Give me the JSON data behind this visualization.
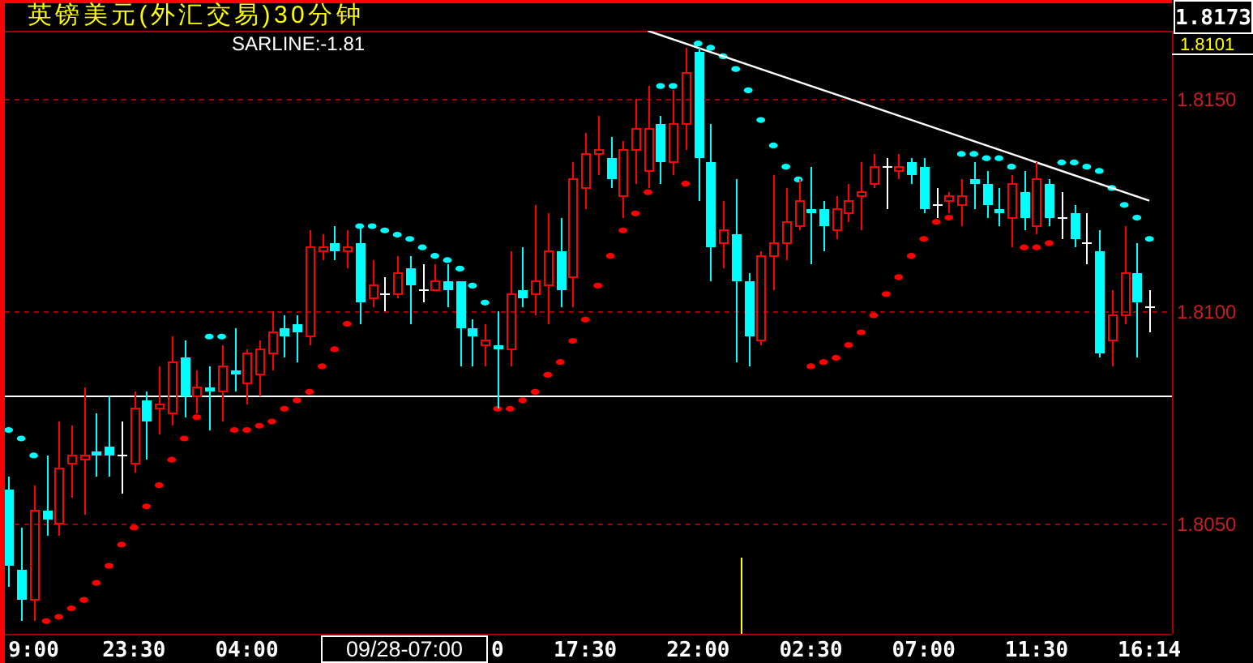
{
  "chart_data": {
    "type": "candlestick",
    "title": "英镑美元(外汇交易)30分钟",
    "annotations": [
      "SARLINE:-1.81",
      "1.8173",
      "1.8101",
      "09/28-07:00"
    ],
    "categories": [
      null,
      null,
      "9:00",
      null,
      null,
      null,
      null,
      null,
      null,
      null,
      "23:30",
      null,
      null,
      null,
      null,
      null,
      null,
      null,
      null,
      "04:00",
      null,
      null,
      null,
      null,
      null,
      null,
      null,
      null,
      null,
      null,
      null,
      null,
      null,
      null,
      null,
      null,
      null,
      null,
      null,
      "0",
      null,
      null,
      null,
      null,
      null,
      null,
      "17:30",
      null,
      null,
      null,
      null,
      null,
      null,
      null,
      null,
      "22:00",
      null,
      null,
      null,
      null,
      null,
      null,
      null,
      null,
      "02:30",
      null,
      null,
      null,
      null,
      null,
      null,
      null,
      null,
      "07:00",
      null,
      null,
      null,
      null,
      null,
      null,
      null,
      null,
      "11:30",
      null,
      null,
      null,
      null,
      null,
      null,
      null,
      null,
      "16:14"
    ],
    "ylim": [
      1.8024,
      1.8166
    ],
    "yticks": [
      {
        "value": 1.805,
        "label": "1.8050"
      },
      {
        "value": 1.81,
        "label": "1.8100"
      },
      {
        "value": 1.815,
        "label": "1.8150"
      }
    ],
    "grid": "y",
    "ohlc": [
      [
        1.8058,
        1.8061,
        1.8035,
        1.804
      ],
      [
        1.8039,
        1.8049,
        1.8027,
        1.8032
      ],
      [
        1.8032,
        1.8059,
        1.8027,
        1.8053
      ],
      [
        1.8053,
        1.8066,
        1.8047,
        1.8051
      ],
      [
        1.805,
        1.8074,
        1.8047,
        1.8063
      ],
      [
        1.8064,
        1.8073,
        1.8056,
        1.8066
      ],
      [
        1.8065,
        1.8082,
        1.8052,
        1.8066
      ],
      [
        1.8067,
        1.8076,
        1.8061,
        1.8066
      ],
      [
        1.8068,
        1.808,
        1.8061,
        1.8066
      ],
      [
        1.8066,
        1.8074,
        1.8057,
        1.8066
      ],
      [
        1.8064,
        1.8081,
        1.8062,
        1.8077
      ],
      [
        1.8079,
        1.8081,
        1.8065,
        1.8074
      ],
      [
        1.8077,
        1.8087,
        1.8071,
        1.8078
      ],
      [
        1.8076,
        1.8094,
        1.8073,
        1.8088
      ],
      [
        1.8089,
        1.8093,
        1.8075,
        1.808
      ],
      [
        1.808,
        1.8086,
        1.8076,
        1.8082
      ],
      [
        1.8082,
        1.8087,
        1.8072,
        1.8081
      ],
      [
        1.8081,
        1.8092,
        1.8074,
        1.8087
      ],
      [
        1.8086,
        1.8096,
        1.8081,
        1.8085
      ],
      [
        1.8083,
        1.8091,
        1.8078,
        1.809
      ],
      [
        1.8085,
        1.8093,
        1.808,
        1.8091
      ],
      [
        1.809,
        1.81,
        1.8086,
        1.8095
      ],
      [
        1.8096,
        1.8099,
        1.8089,
        1.8094
      ],
      [
        1.8097,
        1.8099,
        1.8088,
        1.8095
      ],
      [
        1.8094,
        1.8119,
        1.8092,
        1.8115
      ],
      [
        1.8114,
        1.8118,
        1.8112,
        1.8115
      ],
      [
        1.8116,
        1.812,
        1.8112,
        1.8114
      ],
      [
        1.8114,
        1.8119,
        1.811,
        1.8115
      ],
      [
        1.8116,
        1.812,
        1.8097,
        1.8102
      ],
      [
        1.8103,
        1.8112,
        1.8101,
        1.8106
      ],
      [
        1.8104,
        1.8108,
        1.81,
        1.8104
      ],
      [
        1.8104,
        1.8113,
        1.8103,
        1.8109
      ],
      [
        1.811,
        1.8113,
        1.8097,
        1.8106
      ],
      [
        1.8105,
        1.8111,
        1.8102,
        1.8105
      ],
      [
        1.8105,
        1.8111,
        1.8105,
        1.8107
      ],
      [
        1.8107,
        1.8111,
        1.8101,
        1.8105
      ],
      [
        1.8107,
        1.8107,
        1.8087,
        1.8096
      ],
      [
        1.8096,
        1.8098,
        1.8087,
        1.8094
      ],
      [
        1.8092,
        1.8097,
        1.8087,
        1.8093
      ],
      [
        1.8092,
        1.81,
        1.8077,
        1.8091
      ],
      [
        1.8091,
        1.8114,
        1.8087,
        1.8104
      ],
      [
        1.8105,
        1.8115,
        1.8101,
        1.8103
      ],
      [
        1.8104,
        1.8125,
        1.8099,
        1.8107
      ],
      [
        1.8106,
        1.8123,
        1.8097,
        1.8114
      ],
      [
        1.8114,
        1.8122,
        1.8101,
        1.8105
      ],
      [
        1.8108,
        1.8135,
        1.8101,
        1.8131
      ],
      [
        1.8129,
        1.8142,
        1.8124,
        1.8137
      ],
      [
        1.8137,
        1.8146,
        1.8132,
        1.8138
      ],
      [
        1.8136,
        1.8141,
        1.8129,
        1.8131
      ],
      [
        1.8127,
        1.814,
        1.8122,
        1.8138
      ],
      [
        1.8138,
        1.815,
        1.813,
        1.8143
      ],
      [
        1.8133,
        1.8153,
        1.8129,
        1.8143
      ],
      [
        1.8144,
        1.8146,
        1.813,
        1.8135
      ],
      [
        1.8135,
        1.8152,
        1.8132,
        1.8144
      ],
      [
        1.8144,
        1.8162,
        1.8138,
        1.8156
      ],
      [
        1.8161,
        1.8162,
        1.8126,
        1.8136
      ],
      [
        1.8135,
        1.8144,
        1.8107,
        1.8115
      ],
      [
        1.8116,
        1.8126,
        1.811,
        1.8119
      ],
      [
        1.8118,
        1.8131,
        1.8088,
        1.8107
      ],
      [
        1.8107,
        1.8109,
        1.8087,
        1.8094
      ],
      [
        1.8093,
        1.8114,
        1.8092,
        1.8113
      ],
      [
        1.8113,
        1.8132,
        1.8105,
        1.8116
      ],
      [
        1.8116,
        1.8129,
        1.8112,
        1.8121
      ],
      [
        1.812,
        1.8131,
        1.8119,
        1.8126
      ],
      [
        1.8124,
        1.8134,
        1.8111,
        1.8123
      ],
      [
        1.8124,
        1.8126,
        1.8114,
        1.812
      ],
      [
        1.8119,
        1.8127,
        1.8117,
        1.8124
      ],
      [
        1.8123,
        1.813,
        1.8121,
        1.8126
      ],
      [
        1.8127,
        1.8135,
        1.8119,
        1.8128
      ],
      [
        1.813,
        1.8137,
        1.8129,
        1.8134
      ],
      [
        1.8134,
        1.8136,
        1.8124,
        1.8134
      ],
      [
        1.8133,
        1.8137,
        1.8131,
        1.8134
      ],
      [
        1.8135,
        1.8136,
        1.813,
        1.8132
      ],
      [
        1.8134,
        1.8136,
        1.8123,
        1.8124
      ],
      [
        1.8125,
        1.8129,
        1.8122,
        1.8125
      ],
      [
        1.8126,
        1.8128,
        1.8123,
        1.8127
      ],
      [
        1.8125,
        1.8131,
        1.812,
        1.8127
      ],
      [
        1.8131,
        1.8135,
        1.8124,
        1.813
      ],
      [
        1.813,
        1.8133,
        1.8122,
        1.8125
      ],
      [
        1.8124,
        1.8129,
        1.812,
        1.8123
      ],
      [
        1.8122,
        1.8132,
        1.8115,
        1.813
      ],
      [
        1.8128,
        1.8133,
        1.8119,
        1.8122
      ],
      [
        1.812,
        1.8135,
        1.8118,
        1.8131
      ],
      [
        1.813,
        1.8131,
        1.812,
        1.8122
      ],
      [
        1.8122,
        1.8128,
        1.8117,
        1.8122
      ],
      [
        1.8123,
        1.8125,
        1.8115,
        1.8117
      ],
      [
        1.8116,
        1.8123,
        1.8111,
        1.8116
      ],
      [
        1.8114,
        1.8119,
        1.8089,
        1.809
      ],
      [
        1.8093,
        1.8105,
        1.8087,
        1.8099
      ],
      [
        1.8099,
        1.812,
        1.8097,
        1.8109
      ],
      [
        1.8109,
        1.8116,
        1.8089,
        1.8102
      ],
      [
        1.8101,
        1.8105,
        1.8095,
        1.8101
      ]
    ],
    "colors": [
      "#00ffff",
      "#00ffff",
      "#ff0000",
      "#00ffff",
      "#ff0000",
      "#ff0000",
      "#ff0000",
      "#00ffff",
      "#00ffff",
      "#ffffff",
      "#ff0000",
      "#00ffff",
      "#ff0000",
      "#ff0000",
      "#00ffff",
      "#ff0000",
      "#00ffff",
      "#ff0000",
      "#00ffff",
      "#ff0000",
      "#ff0000",
      "#ff0000",
      "#00ffff",
      "#00ffff",
      "#ff0000",
      "#ff0000",
      "#00ffff",
      "#ff0000",
      "#00ffff",
      "#ff0000",
      "#ffffff",
      "#ff0000",
      "#00ffff",
      "#ffffff",
      "#ff0000",
      "#00ffff",
      "#00ffff",
      "#00ffff",
      "#ff0000",
      "#00ffff",
      "#ff0000",
      "#00ffff",
      "#ff0000",
      "#ff0000",
      "#00ffff",
      "#ff0000",
      "#ff0000",
      "#ff0000",
      "#00ffff",
      "#ff0000",
      "#ff0000",
      "#ff0000",
      "#00ffff",
      "#ff0000",
      "#ff0000",
      "#00ffff",
      "#00ffff",
      "#ff0000",
      "#00ffff",
      "#00ffff",
      "#ff0000",
      "#ff0000",
      "#ff0000",
      "#ff0000",
      "#00ffff",
      "#00ffff",
      "#ff0000",
      "#ff0000",
      "#ff0000",
      "#ff0000",
      "#ffffff",
      "#ff0000",
      "#00ffff",
      "#00ffff",
      "#ffffff",
      "#ff0000",
      "#ff0000",
      "#00ffff",
      "#00ffff",
      "#00ffff",
      "#ff0000",
      "#00ffff",
      "#ff0000",
      "#00ffff",
      "#ffffff",
      "#00ffff",
      "#ffffff",
      "#00ffff",
      "#ff0000",
      "#ff0000",
      "#00ffff",
      "#ffffff"
    ],
    "series": [
      {
        "type": "scatter",
        "marker": "circle",
        "color": "#ff0000",
        "values": [
          null,
          null,
          null,
          1.8027,
          1.8028,
          1.803,
          1.8032,
          1.8036,
          1.804,
          1.8045,
          1.8049,
          1.8054,
          1.8059,
          1.8065,
          1.807,
          1.8075,
          null,
          null,
          1.8072,
          1.8072,
          1.8073,
          1.8074,
          1.8077,
          1.8079,
          1.8081,
          1.8087,
          1.8091,
          1.8097,
          null,
          null,
          null,
          null,
          null,
          null,
          null,
          null,
          null,
          null,
          null,
          1.8077,
          1.8077,
          1.8079,
          1.8081,
          1.8085,
          1.8088,
          1.8093,
          1.8098,
          1.8106,
          1.8113,
          1.8119,
          1.8123,
          1.8128,
          null,
          null,
          1.813,
          null,
          null,
          null,
          null,
          null,
          null,
          null,
          null,
          null,
          1.8087,
          1.8088,
          1.8089,
          1.8092,
          1.8095,
          1.8099,
          1.8104,
          1.8108,
          1.8113,
          1.8117,
          1.8121,
          1.8122,
          null,
          null,
          null,
          null,
          null,
          1.8115,
          1.8115,
          1.8116,
          null,
          null,
          null,
          null,
          null,
          null,
          null,
          null
        ]
      },
      {
        "type": "scatter",
        "marker": "circle",
        "color": "#00ffff",
        "values": [
          1.8072,
          1.807,
          1.8066,
          null,
          null,
          null,
          null,
          null,
          null,
          null,
          null,
          null,
          null,
          null,
          null,
          null,
          1.8094,
          1.8094,
          null,
          null,
          null,
          null,
          null,
          null,
          null,
          null,
          null,
          null,
          1.812,
          1.812,
          1.8119,
          1.8118,
          1.8117,
          1.8115,
          1.8113,
          1.8112,
          1.811,
          1.8106,
          1.8102,
          null,
          null,
          null,
          null,
          null,
          null,
          null,
          null,
          null,
          null,
          null,
          null,
          null,
          1.8153,
          1.8153,
          null,
          1.8163,
          1.8162,
          1.816,
          1.8157,
          1.8152,
          1.8145,
          1.8139,
          1.8134,
          1.8131,
          null,
          null,
          null,
          null,
          null,
          null,
          null,
          null,
          null,
          null,
          null,
          null,
          1.8137,
          1.8137,
          1.8136,
          1.8136,
          1.8134,
          null,
          null,
          null,
          1.8135,
          1.8135,
          1.8134,
          1.8133,
          1.8129,
          1.8125,
          1.8122,
          1.8117
        ]
      },
      {
        "type": "line",
        "color": "#ffffff",
        "values": [
          null,
          null,
          null,
          null,
          null,
          null,
          null,
          null,
          null,
          null,
          null,
          null,
          null,
          null,
          null,
          null,
          null,
          null,
          null,
          null,
          null,
          null,
          null,
          null,
          null,
          null,
          null,
          null,
          null,
          null,
          null,
          null,
          null,
          null,
          null,
          null,
          null,
          null,
          null,
          null,
          null,
          null,
          null,
          null,
          null,
          null,
          null,
          null,
          null,
          null,
          null,
          1.8166,
          null,
          null,
          null,
          null,
          null,
          null,
          null,
          null,
          null,
          null,
          null,
          null,
          null,
          null,
          null,
          null,
          null,
          null,
          null,
          null,
          null,
          null,
          null,
          null,
          null,
          null,
          null,
          null,
          null,
          null,
          null,
          null,
          null,
          null,
          null,
          null,
          null,
          null,
          null,
          1.8126
        ]
      }
    ],
    "ref_lines": [
      {
        "axis": "y",
        "value": 1.808,
        "color": "#ffffff"
      }
    ]
  }
}
